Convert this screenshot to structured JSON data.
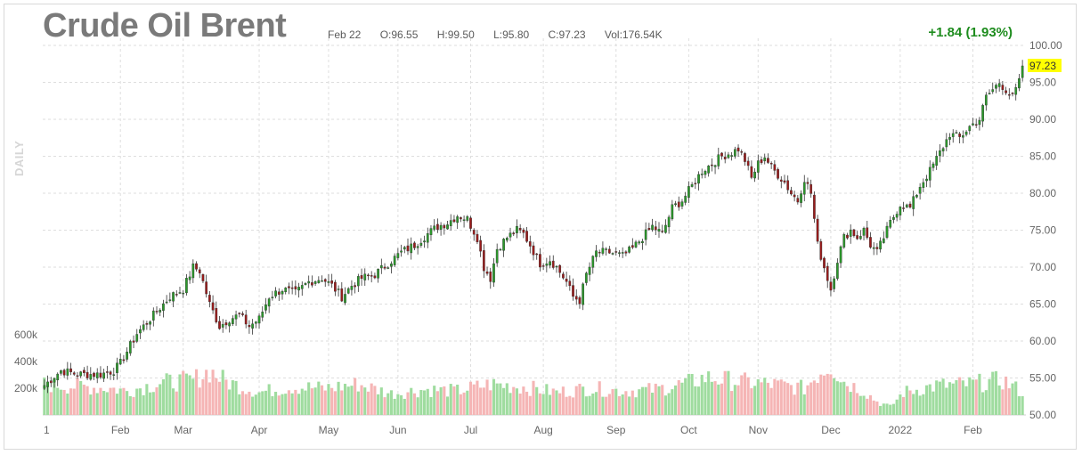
{
  "header": {
    "title": "Crude Oil Brent",
    "date": "Feb 22",
    "open": "O:96.55",
    "high": "H:99.50",
    "low": "L:95.80",
    "close": "C:97.23",
    "volume": "Vol:176.54K",
    "change": "+1.84 (1.93%)",
    "period": "DAILY"
  },
  "colors": {
    "up": "#2a9a2a",
    "down": "#9b1b1b",
    "vol_up": "#9fdc9f",
    "vol_down": "#f5b5b5",
    "last_price_bg": "#ffff00",
    "change": "#1e8c1e"
  },
  "chart_data": {
    "type": "candlestick",
    "title": "Crude Oil Brent",
    "last_price": "97.23",
    "ylim": [
      50,
      100
    ],
    "y_ticks": [
      "100.00",
      "95.00",
      "90.00",
      "85.00",
      "80.00",
      "75.00",
      "70.00",
      "65.00",
      "60.00",
      "55.00",
      "50.00"
    ],
    "y_tick_values": [
      100,
      95,
      90,
      85,
      80,
      75,
      70,
      65,
      60,
      55,
      50
    ],
    "volume_ticks": [
      "600k",
      "400k",
      "200k"
    ],
    "volume_tick_values": [
      600,
      400,
      200
    ],
    "x_labels": [
      "1",
      "Feb",
      "Mar",
      "Apr",
      "May",
      "Jun",
      "Jul",
      "Aug",
      "Sep",
      "Oct",
      "Nov",
      "Dec",
      "2022",
      "Feb"
    ],
    "x_label_index": [
      0,
      23,
      42,
      65,
      86,
      107,
      129,
      151,
      173,
      195,
      216,
      238,
      259,
      281
    ],
    "close_points": [
      [
        0,
        54
      ],
      [
        5,
        56
      ],
      [
        10,
        55.5
      ],
      [
        17,
        55.5
      ],
      [
        21,
        56
      ],
      [
        23,
        57
      ],
      [
        28,
        61
      ],
      [
        33,
        63.5
      ],
      [
        38,
        66
      ],
      [
        42,
        67
      ],
      [
        45,
        70
      ],
      [
        47,
        69.5
      ],
      [
        50,
        65
      ],
      [
        53,
        62
      ],
      [
        56,
        63
      ],
      [
        59,
        63.5
      ],
      [
        62,
        62
      ],
      [
        65,
        63
      ],
      [
        68,
        66
      ],
      [
        72,
        67
      ],
      [
        76,
        66.5
      ],
      [
        80,
        68
      ],
      [
        84,
        68.5
      ],
      [
        87,
        67.5
      ],
      [
        90,
        66
      ],
      [
        93,
        67.5
      ],
      [
        96,
        68.5
      ],
      [
        100,
        69
      ],
      [
        104,
        70.5
      ],
      [
        108,
        72
      ],
      [
        112,
        73
      ],
      [
        116,
        74.5
      ],
      [
        119,
        75.5
      ],
      [
        122,
        76
      ],
      [
        125,
        77
      ],
      [
        128,
        76.5
      ],
      [
        131,
        74
      ],
      [
        133,
        70
      ],
      [
        135,
        68.5
      ],
      [
        137,
        72.5
      ],
      [
        140,
        74
      ],
      [
        143,
        75
      ],
      [
        145,
        74.5
      ],
      [
        147,
        73
      ],
      [
        150,
        70.5
      ],
      [
        153,
        71
      ],
      [
        155,
        70
      ],
      [
        158,
        68
      ],
      [
        160,
        66
      ],
      [
        162,
        65.5
      ],
      [
        164,
        69
      ],
      [
        167,
        72
      ],
      [
        171,
        72
      ],
      [
        175,
        71.5
      ],
      [
        178,
        72.5
      ],
      [
        181,
        74
      ],
      [
        184,
        75.5
      ],
      [
        187,
        74.5
      ],
      [
        190,
        78
      ],
      [
        193,
        79
      ],
      [
        196,
        81
      ],
      [
        199,
        83
      ],
      [
        202,
        84
      ],
      [
        205,
        85
      ],
      [
        208,
        85.5
      ],
      [
        210,
        86
      ],
      [
        212,
        84.5
      ],
      [
        214,
        82
      ],
      [
        216,
        84
      ],
      [
        218,
        85
      ],
      [
        220,
        83.5
      ],
      [
        222,
        82.5
      ],
      [
        224,
        81.5
      ],
      [
        226,
        80
      ],
      [
        228,
        79
      ],
      [
        230,
        82
      ],
      [
        232,
        80
      ],
      [
        234,
        73
      ],
      [
        236,
        70
      ],
      [
        238,
        67
      ],
      [
        240,
        71
      ],
      [
        242,
        74
      ],
      [
        244,
        75
      ],
      [
        246,
        74
      ],
      [
        248,
        75
      ],
      [
        250,
        73
      ],
      [
        252,
        72
      ],
      [
        254,
        74
      ],
      [
        256,
        76
      ],
      [
        259,
        78.5
      ],
      [
        262,
        78
      ],
      [
        265,
        81
      ],
      [
        268,
        83
      ],
      [
        271,
        85.5
      ],
      [
        274,
        88
      ],
      [
        277,
        87.5
      ],
      [
        280,
        89
      ],
      [
        283,
        90
      ],
      [
        285,
        93
      ],
      [
        287,
        94
      ],
      [
        289,
        95
      ],
      [
        291,
        94
      ],
      [
        293,
        93
      ],
      [
        295,
        95
      ],
      [
        296,
        97.23
      ]
    ],
    "volume_profile": [
      [
        0,
        230
      ],
      [
        20,
        200
      ],
      [
        25,
        180
      ],
      [
        35,
        240
      ],
      [
        45,
        260
      ],
      [
        50,
        330
      ],
      [
        55,
        250
      ],
      [
        65,
        170
      ],
      [
        75,
        210
      ],
      [
        85,
        200
      ],
      [
        95,
        230
      ],
      [
        105,
        160
      ],
      [
        115,
        190
      ],
      [
        125,
        180
      ],
      [
        135,
        230
      ],
      [
        145,
        210
      ],
      [
        155,
        170
      ],
      [
        165,
        200
      ],
      [
        175,
        180
      ],
      [
        185,
        190
      ],
      [
        195,
        240
      ],
      [
        200,
        280
      ],
      [
        210,
        250
      ],
      [
        220,
        230
      ],
      [
        230,
        200
      ],
      [
        235,
        330
      ],
      [
        238,
        380
      ],
      [
        242,
        250
      ],
      [
        248,
        180
      ],
      [
        252,
        100
      ],
      [
        256,
        60
      ],
      [
        260,
        170
      ],
      [
        270,
        220
      ],
      [
        280,
        230
      ],
      [
        290,
        260
      ],
      [
        296,
        170
      ]
    ]
  }
}
